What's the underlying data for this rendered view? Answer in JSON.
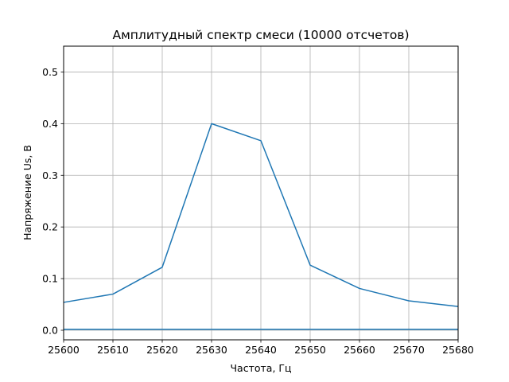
{
  "chart_data": {
    "type": "line",
    "title": "Амплитудный спектр смеси (10000 отсчетов)",
    "xlabel": "Частота, Гц",
    "ylabel": "Напряжение Us, В",
    "xlim": [
      25600,
      25680
    ],
    "ylim": [
      -0.0185,
      0.55
    ],
    "xticks": [
      "25600",
      "25610",
      "25620",
      "25630",
      "25640",
      "25650",
      "25660",
      "25670",
      "25680"
    ],
    "yticks": [
      "0.0",
      "0.1",
      "0.2",
      "0.3",
      "0.4",
      "0.5"
    ],
    "grid": true,
    "series": [
      {
        "color": "#1f77b4",
        "x": [
          25600,
          25610,
          25620,
          25630,
          25640,
          25650,
          25660,
          25670,
          25680
        ],
        "y": [
          0.054,
          0.07,
          0.122,
          0.4,
          0.367,
          0.126,
          0.081,
          0.057,
          0.046
        ]
      },
      {
        "color": "#1f77b4",
        "x": [
          25600,
          25680
        ],
        "y": [
          0.002,
          0.002
        ]
      }
    ]
  }
}
